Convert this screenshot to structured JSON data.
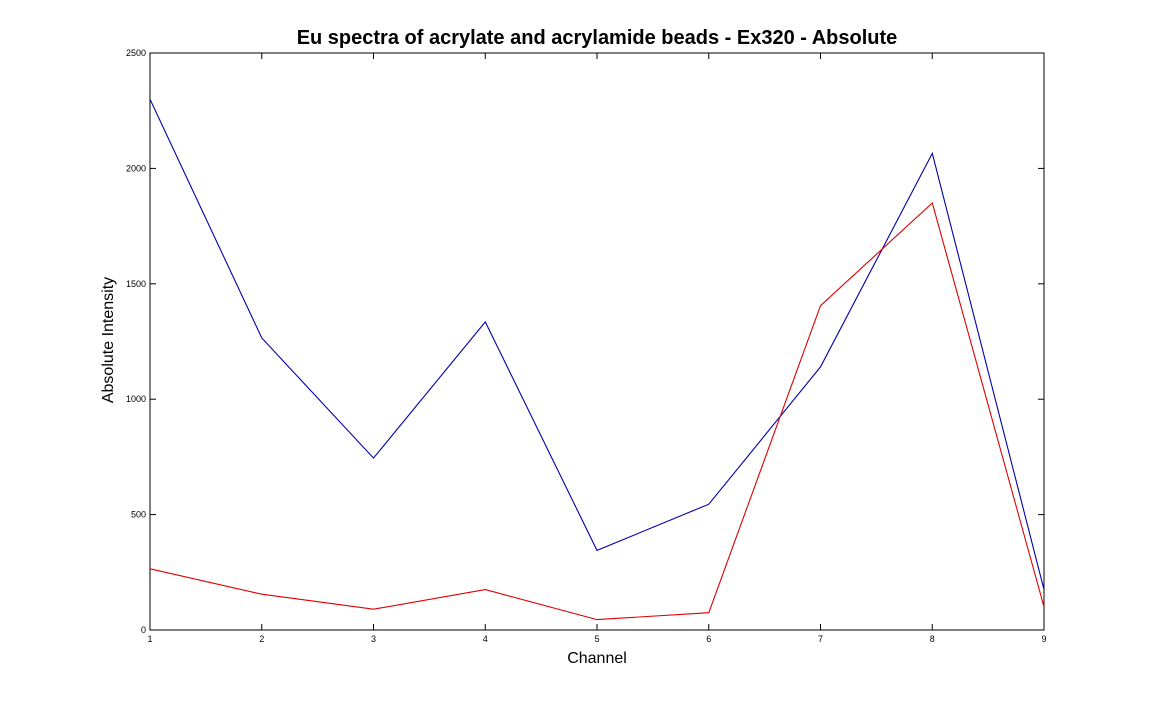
{
  "chart_data": {
    "type": "line",
    "title": "Eu spectra of acrylate and acrylamide beads - Ex320 - Absolute",
    "xlabel": "Channel",
    "ylabel": "Absolute Intensity",
    "xlim": [
      1,
      9
    ],
    "ylim": [
      0,
      2500
    ],
    "x": [
      1,
      2,
      3,
      4,
      5,
      6,
      7,
      8,
      9
    ],
    "xticks": [
      "1",
      "2",
      "3",
      "4",
      "5",
      "6",
      "7",
      "8",
      "9"
    ],
    "yticks": [
      "0",
      "500",
      "1000",
      "1500",
      "2000",
      "2500"
    ],
    "grid": false,
    "series": [
      {
        "color": "#0000aa",
        "values": [
          2300,
          1265,
          745,
          1335,
          345,
          545,
          1140,
          2065,
          175
        ]
      },
      {
        "color": "#dd0000",
        "values": [
          265,
          155,
          90,
          175,
          45,
          75,
          1405,
          1850,
          100
        ]
      }
    ]
  }
}
